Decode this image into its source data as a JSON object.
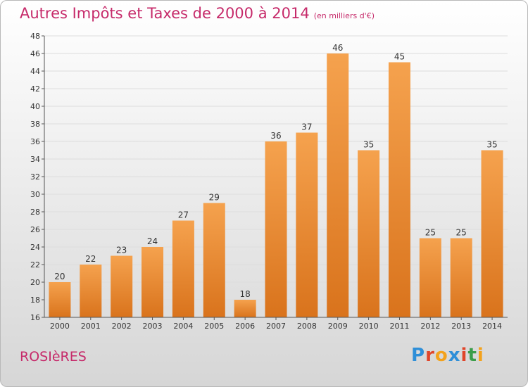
{
  "title": "Autres Impôts et Taxes de 2000 à 2014",
  "subtitle": "(en milliers d'€)",
  "place": "ROSIèRES",
  "logo": {
    "letters": [
      "P",
      "r",
      "o",
      "x",
      "i",
      "t",
      "i"
    ],
    "colors": [
      "#2f8fd8",
      "#e0452a",
      "#f3a21c",
      "#2f8fd8",
      "#e0452a",
      "#3a9d4a",
      "#f3a21c"
    ]
  },
  "colors": {
    "bar_top": "#f5a24e",
    "bar_bottom": "#d9731c",
    "title": "#c62a6a",
    "grid": "#dddddd"
  },
  "chart_data": {
    "type": "bar",
    "categories": [
      "2000",
      "2001",
      "2002",
      "2003",
      "2004",
      "2005",
      "2006",
      "2007",
      "2008",
      "2009",
      "2010",
      "2011",
      "2012",
      "2013",
      "2014"
    ],
    "values": [
      20,
      22,
      23,
      24,
      27,
      29,
      18,
      36,
      37,
      46,
      35,
      45,
      25,
      25,
      35
    ],
    "ylim": [
      16,
      48
    ],
    "yticks": [
      16,
      18,
      20,
      22,
      24,
      26,
      28,
      30,
      32,
      34,
      36,
      38,
      40,
      42,
      44,
      46,
      48
    ],
    "grid": true,
    "data_labels": true
  }
}
